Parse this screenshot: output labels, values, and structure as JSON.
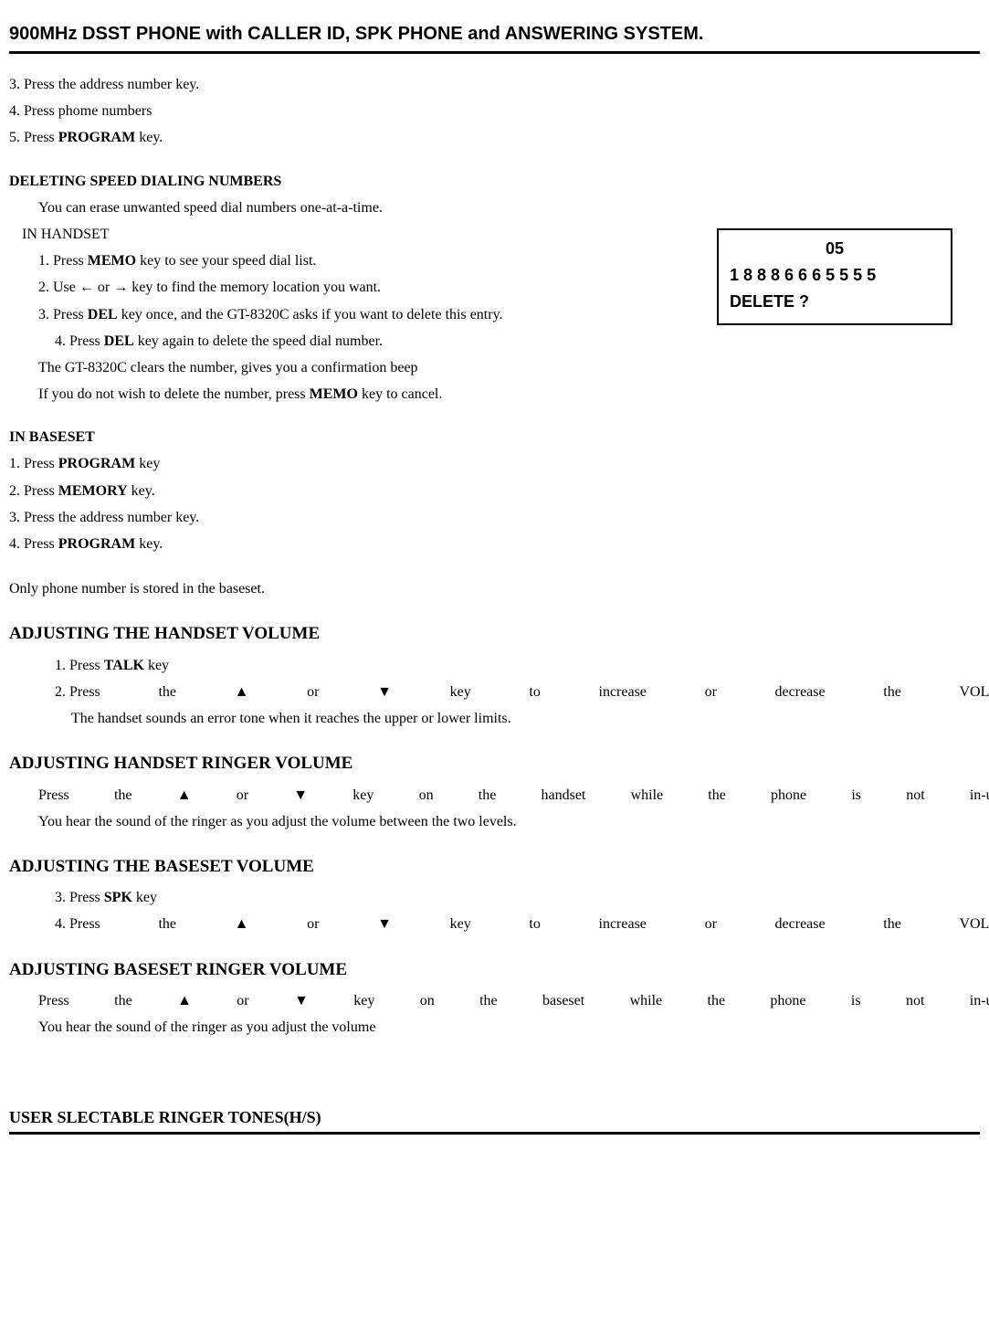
{
  "header": {
    "title": "900MHz DSST PHONE with CALLER ID, SPK PHONE and ANSWERING SYSTEM."
  },
  "intro_steps": {
    "s3": "3. Press the address number key.",
    "s4": "4. Press phome numbers",
    "s5_pre": "5. Press ",
    "s5_key": "PROGRAM",
    "s5_post": " key."
  },
  "del_heading": "DELETING SPEED DIALING NUMBERS",
  "del_intro": "You can erase unwanted speed dial numbers one-at-a-time.",
  "del_handset_label": "IN HANDSET",
  "del_handset": {
    "s1_pre": "1.  Press ",
    "s1_key": "MEMO",
    "s1_post": " key to see your speed dial list.",
    "s2_pre": "2.  Use  ",
    "s2_arrow_l": "←",
    "s2_mid": "   or  ",
    "s2_arrow_r": "→",
    "s2_post": " key to find the memory location you want.",
    "s3_pre": "3.  Press ",
    "s3_key": "DEL",
    "s3_post": " key once, and the GT-8320C asks if you want to delete this entry.",
    "s4_pre": "4.  Press ",
    "s4_key": "DEL",
    "s4_post": " key again to delete the speed dial number.",
    "confirm": "The GT-8320C clears the number, gives you a confirmation beep",
    "cancel_pre": "If you do not wish to delete the number, press ",
    "cancel_key": "MEMO",
    "cancel_post": " key to cancel."
  },
  "display": {
    "line1": "05",
    "line2": "1 8 8 8 6 6 6 5 5 5 5",
    "line3": "DELETE ?"
  },
  "baseset_label": "IN BASESET",
  "baseset": {
    "s1_pre": "1. Press ",
    "s1_key": "PROGRAM",
    "s1_post": " key",
    "s2_pre": "2. Press ",
    "s2_key": "MEMORY",
    "s2_post": " key.",
    "s3": "3. Press the address number key.",
    "s4_pre": "4. Press ",
    "s4_key": "PROGRAM",
    "s4_post": " key.",
    "note": "Only phone number is stored in the baseset."
  },
  "vol_handset": {
    "heading": "ADJUSTING THE HANDSET VOLUME",
    "s1_pre": "1. Press ",
    "s1_key": "TALK",
    "s1_post": " key",
    "s2_words": [
      "2. Press",
      "the",
      "▲",
      "or",
      "▼",
      "key",
      "to",
      "increase",
      "or",
      "decrease",
      "the",
      "VOLUME."
    ],
    "note": "The handset sounds an error tone when it reaches the upper or lower limits."
  },
  "ring_handset": {
    "heading": "ADJUSTING HANDSET RINGER VOLUME",
    "words": [
      "Press",
      "the",
      "▲",
      "or",
      "▼",
      "key",
      "on",
      "the",
      "handset",
      "while",
      "the",
      "phone",
      "is",
      "not",
      "in-use."
    ],
    "note": "You hear the sound of the ringer as you adjust the volume between the two levels."
  },
  "vol_baseset": {
    "heading": "ADJUSTING THE BASESET VOLUME",
    "s3_pre": "3. Press ",
    "s3_key": "SPK",
    "s3_post": " key",
    "s4_words": [
      "4. Press",
      "the",
      "▲",
      "or",
      "▼",
      "key",
      "to",
      "increase",
      "or",
      "decrease",
      "the",
      "VOLUME."
    ]
  },
  "ring_baseset": {
    "heading": "ADJUSTING BASESET RINGER VOLUME",
    "words": [
      "Press",
      "the",
      "▲",
      "or",
      "▼",
      "key",
      "on",
      "the",
      "baseset",
      "while",
      "the",
      "phone",
      "is",
      "not",
      "in-use."
    ],
    "note": "You hear the sound of the ringer as you adjust the volume"
  },
  "footer": {
    "heading": "USER SLECTABLE RINGER TONES(H/S)"
  }
}
